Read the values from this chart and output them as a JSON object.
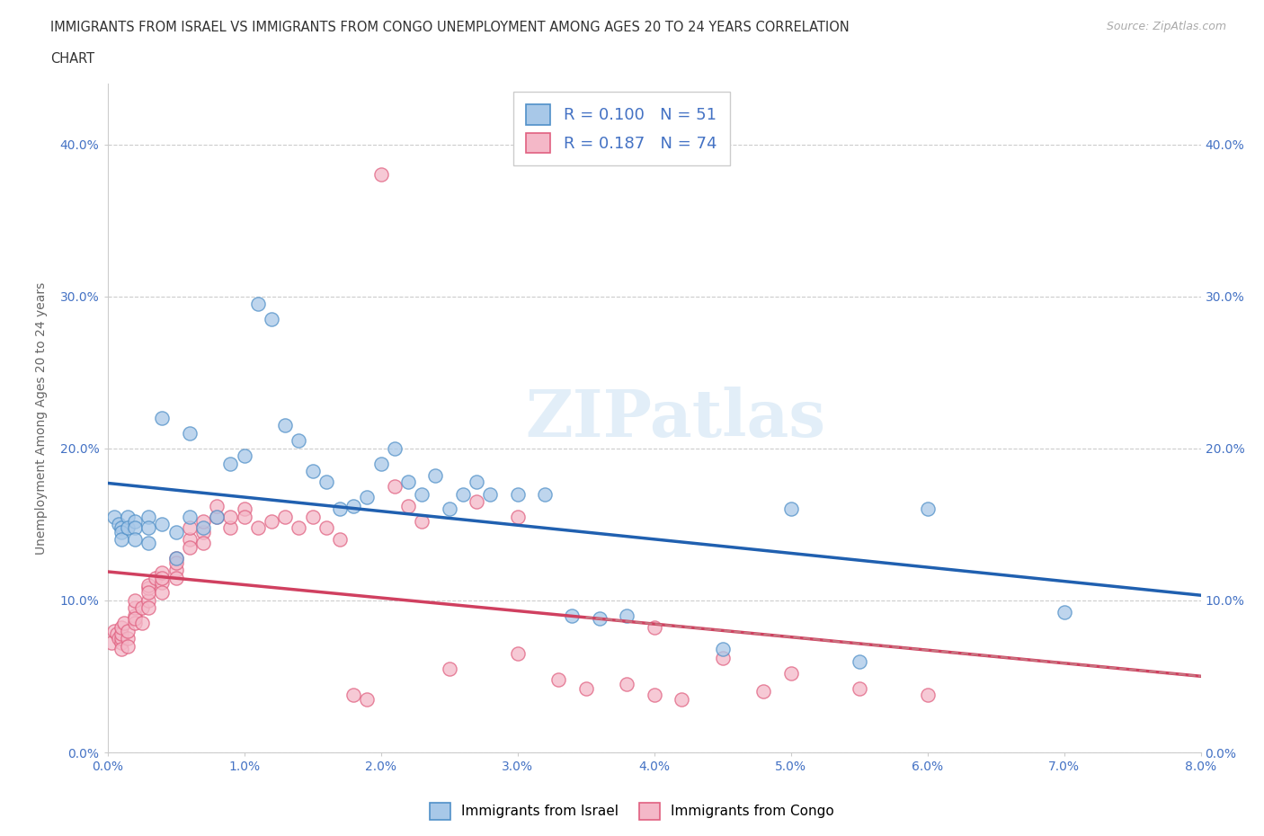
{
  "title_line1": "IMMIGRANTS FROM ISRAEL VS IMMIGRANTS FROM CONGO UNEMPLOYMENT AMONG AGES 20 TO 24 YEARS CORRELATION",
  "title_line2": "CHART",
  "source": "Source: ZipAtlas.com",
  "ylabel": "Unemployment Among Ages 20 to 24 years",
  "xlim": [
    0.0,
    0.08
  ],
  "ylim": [
    0.0,
    0.44
  ],
  "xticks": [
    0.0,
    0.01,
    0.02,
    0.03,
    0.04,
    0.05,
    0.06,
    0.07,
    0.08
  ],
  "xticklabels": [
    "0.0%",
    "1.0%",
    "2.0%",
    "3.0%",
    "4.0%",
    "5.0%",
    "6.0%",
    "7.0%",
    "8.0%"
  ],
  "yticks": [
    0.0,
    0.1,
    0.2,
    0.3,
    0.4
  ],
  "yticklabels": [
    "0.0%",
    "10.0%",
    "20.0%",
    "30.0%",
    "40.0%"
  ],
  "israel_color": "#a8c8e8",
  "congo_color": "#f4b8c8",
  "israel_edge_color": "#5090c8",
  "congo_edge_color": "#e06080",
  "israel_line_color": "#2060b0",
  "congo_line_color": "#d04060",
  "R_israel": 0.1,
  "N_israel": 51,
  "R_congo": 0.187,
  "N_congo": 74,
  "israel_x": [
    0.0005,
    0.0008,
    0.001,
    0.001,
    0.001,
    0.0015,
    0.0015,
    0.002,
    0.002,
    0.002,
    0.003,
    0.003,
    0.003,
    0.004,
    0.004,
    0.005,
    0.005,
    0.006,
    0.006,
    0.007,
    0.008,
    0.009,
    0.01,
    0.011,
    0.012,
    0.013,
    0.014,
    0.015,
    0.016,
    0.017,
    0.018,
    0.019,
    0.02,
    0.021,
    0.022,
    0.023,
    0.024,
    0.025,
    0.026,
    0.027,
    0.028,
    0.03,
    0.032,
    0.034,
    0.036,
    0.038,
    0.045,
    0.05,
    0.055,
    0.06,
    0.07
  ],
  "israel_y": [
    0.155,
    0.15,
    0.148,
    0.145,
    0.14,
    0.155,
    0.148,
    0.152,
    0.148,
    0.14,
    0.155,
    0.148,
    0.138,
    0.15,
    0.22,
    0.145,
    0.128,
    0.155,
    0.21,
    0.148,
    0.155,
    0.19,
    0.195,
    0.295,
    0.285,
    0.215,
    0.205,
    0.185,
    0.178,
    0.16,
    0.162,
    0.168,
    0.19,
    0.2,
    0.178,
    0.17,
    0.182,
    0.16,
    0.17,
    0.178,
    0.17,
    0.17,
    0.17,
    0.09,
    0.088,
    0.09,
    0.068,
    0.16,
    0.06,
    0.16,
    0.092
  ],
  "congo_x": [
    0.0003,
    0.0005,
    0.0007,
    0.0008,
    0.001,
    0.001,
    0.001,
    0.001,
    0.001,
    0.0012,
    0.0015,
    0.0015,
    0.0015,
    0.002,
    0.002,
    0.002,
    0.002,
    0.002,
    0.0025,
    0.0025,
    0.003,
    0.003,
    0.003,
    0.003,
    0.003,
    0.0035,
    0.004,
    0.004,
    0.004,
    0.004,
    0.005,
    0.005,
    0.005,
    0.005,
    0.006,
    0.006,
    0.006,
    0.007,
    0.007,
    0.007,
    0.008,
    0.008,
    0.009,
    0.009,
    0.01,
    0.01,
    0.011,
    0.012,
    0.013,
    0.014,
    0.015,
    0.016,
    0.017,
    0.018,
    0.019,
    0.02,
    0.021,
    0.022,
    0.023,
    0.025,
    0.027,
    0.03,
    0.03,
    0.033,
    0.035,
    0.038,
    0.04,
    0.04,
    0.042,
    0.045,
    0.048,
    0.05,
    0.055,
    0.06
  ],
  "congo_y": [
    0.072,
    0.08,
    0.078,
    0.075,
    0.072,
    0.075,
    0.078,
    0.082,
    0.068,
    0.085,
    0.075,
    0.08,
    0.07,
    0.09,
    0.085,
    0.095,
    0.088,
    0.1,
    0.095,
    0.085,
    0.1,
    0.108,
    0.095,
    0.11,
    0.105,
    0.115,
    0.112,
    0.118,
    0.105,
    0.115,
    0.12,
    0.128,
    0.115,
    0.125,
    0.14,
    0.148,
    0.135,
    0.145,
    0.152,
    0.138,
    0.155,
    0.162,
    0.148,
    0.155,
    0.16,
    0.155,
    0.148,
    0.152,
    0.155,
    0.148,
    0.155,
    0.148,
    0.14,
    0.038,
    0.035,
    0.38,
    0.175,
    0.162,
    0.152,
    0.055,
    0.165,
    0.155,
    0.065,
    0.048,
    0.042,
    0.045,
    0.038,
    0.082,
    0.035,
    0.062,
    0.04,
    0.052,
    0.042,
    0.038
  ],
  "watermark": "ZIPatlas",
  "grid_color": "#cccccc",
  "background_color": "#ffffff",
  "title_color": "#333333",
  "axis_label_color": "#666666",
  "tick_label_color": "#4472c4",
  "legend_text_color": "#4472c4"
}
